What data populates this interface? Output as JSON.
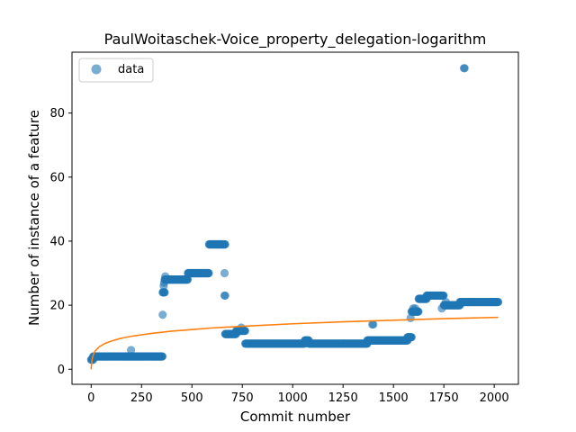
{
  "chart_data": {
    "type": "scatter",
    "title": "PaulWoitaschek-Voice_property_delegation-logarithm",
    "xlabel": "Commit number",
    "ylabel": "Number of instance of a feature",
    "xlim": [
      -95,
      2120
    ],
    "ylim": [
      -4.7,
      99
    ],
    "xticks": [
      0,
      250,
      500,
      750,
      1000,
      1250,
      1500,
      1750,
      2000
    ],
    "yticks": [
      0,
      20,
      40,
      60,
      80
    ],
    "grid": false,
    "legend": {
      "placement": "top-left",
      "entries": [
        "data"
      ]
    },
    "colors": {
      "scatter": "#1f77b4",
      "fit_line": "#ff7f0e"
    },
    "series": [
      {
        "name": "data",
        "kind": "scatter",
        "segments": [
          {
            "x_start": 0,
            "x_end": 10,
            "y": 3
          },
          {
            "x_start": 10,
            "x_end": 355,
            "y": 4
          },
          {
            "x_start": 355,
            "x_end": 365,
            "y": 24
          },
          {
            "x_start": 365,
            "x_end": 375,
            "y": 28
          },
          {
            "x_start": 375,
            "x_end": 480,
            "y": 28
          },
          {
            "x_start": 480,
            "x_end": 585,
            "y": 30
          },
          {
            "x_start": 585,
            "x_end": 665,
            "y": 39
          },
          {
            "x_start": 665,
            "x_end": 720,
            "y": 11
          },
          {
            "x_start": 720,
            "x_end": 765,
            "y": 12
          },
          {
            "x_start": 765,
            "x_end": 1060,
            "y": 8
          },
          {
            "x_start": 1060,
            "x_end": 1080,
            "y": 9
          },
          {
            "x_start": 1080,
            "x_end": 1370,
            "y": 8
          },
          {
            "x_start": 1370,
            "x_end": 1570,
            "y": 9
          },
          {
            "x_start": 1570,
            "x_end": 1590,
            "y": 10
          },
          {
            "x_start": 1590,
            "x_end": 1625,
            "y": 18
          },
          {
            "x_start": 1625,
            "x_end": 1665,
            "y": 22
          },
          {
            "x_start": 1665,
            "x_end": 1750,
            "y": 23
          },
          {
            "x_start": 1750,
            "x_end": 1800,
            "y": 20
          },
          {
            "x_start": 1800,
            "x_end": 1830,
            "y": 20
          },
          {
            "x_start": 1830,
            "x_end": 2020,
            "y": 21
          }
        ],
        "extra_points": [
          [
            198,
            6
          ],
          [
            355,
            17
          ],
          [
            360,
            26
          ],
          [
            362,
            27
          ],
          [
            368,
            29
          ],
          [
            662,
            30
          ],
          [
            662,
            23
          ],
          [
            665,
            23
          ],
          [
            745,
            13
          ],
          [
            1395,
            14
          ],
          [
            1400,
            14
          ],
          [
            1585,
            16
          ],
          [
            1598,
            19
          ],
          [
            1608,
            19
          ],
          [
            1740,
            19
          ],
          [
            1760,
            21
          ],
          [
            1850,
            94
          ],
          [
            1853,
            94
          ]
        ]
      },
      {
        "name": "",
        "kind": "line",
        "function": "logarithmic fit",
        "points": [
          [
            0,
            0
          ],
          [
            2,
            1.8
          ],
          [
            5,
            3.2
          ],
          [
            10,
            4.4
          ],
          [
            20,
            5.7
          ],
          [
            40,
            7.0
          ],
          [
            70,
            8.1
          ],
          [
            100,
            8.8
          ],
          [
            150,
            9.7
          ],
          [
            200,
            10.3
          ],
          [
            300,
            11.2
          ],
          [
            400,
            11.9
          ],
          [
            500,
            12.4
          ],
          [
            600,
            12.9
          ],
          [
            750,
            13.4
          ],
          [
            1000,
            14.2
          ],
          [
            1250,
            14.8
          ],
          [
            1500,
            15.3
          ],
          [
            1750,
            15.8
          ],
          [
            2020,
            16.2
          ]
        ]
      }
    ]
  }
}
